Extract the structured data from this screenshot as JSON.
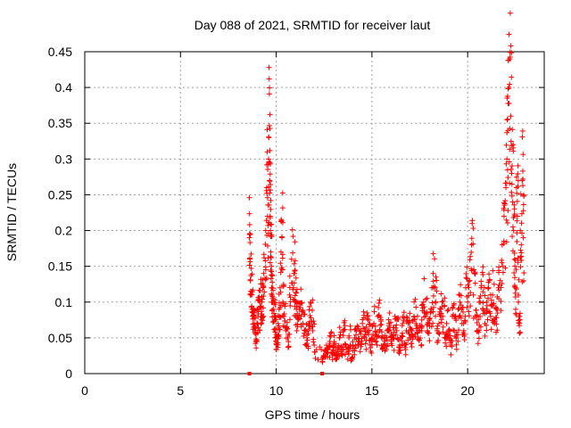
{
  "chart_data": {
    "type": "scatter",
    "title": "Day 088 of 2021, SRMTID for receiver laut",
    "xlabel": "GPS time / hours",
    "ylabel": "SRMTID / TECUs",
    "xlim": [
      0,
      24
    ],
    "ylim": [
      0,
      0.45
    ],
    "xticks": [
      0,
      5,
      10,
      15,
      20
    ],
    "xtick_labels": [
      "0",
      "5",
      "10",
      "15",
      "20"
    ],
    "yticks": [
      0,
      0.05,
      0.1,
      0.15,
      0.2,
      0.25,
      0.3,
      0.35,
      0.4,
      0.45
    ],
    "ytick_labels": [
      "0",
      "0.05",
      "0.1",
      "0.15",
      "0.2",
      "0.25",
      "0.3",
      "0.35",
      "0.4",
      "0.45"
    ],
    "grid": true,
    "marker": "+",
    "color": "#ff0000",
    "series": [
      {
        "name": "SRMTID",
        "x": [
          8.6,
          8.62,
          8.65,
          8.7,
          8.75,
          8.8,
          8.85,
          8.9,
          8.95,
          9.0,
          9.05,
          9.1,
          9.15,
          9.2,
          9.25,
          9.3,
          9.35,
          9.45,
          9.5,
          9.55,
          9.6,
          9.62,
          9.65,
          9.68,
          9.7,
          9.72,
          9.75,
          9.78,
          9.8,
          9.85,
          9.9,
          9.95,
          10.0,
          10.05,
          10.1,
          10.15,
          10.2,
          10.25,
          10.3,
          10.35,
          10.4,
          10.5,
          10.6,
          10.7,
          10.8,
          10.9,
          10.95,
          11.0,
          11.05,
          11.1,
          11.2,
          11.3,
          11.4,
          11.5,
          11.6,
          11.7,
          11.8,
          11.9,
          12.0,
          12.4,
          12.5,
          12.6,
          12.7,
          12.8,
          12.9,
          13.0,
          13.1,
          13.2,
          13.3,
          13.4,
          13.5,
          13.6,
          13.7,
          13.8,
          13.9,
          14.0,
          14.1,
          14.2,
          14.3,
          14.4,
          14.5,
          14.6,
          14.7,
          14.8,
          14.9,
          15.0,
          15.1,
          15.2,
          15.3,
          15.4,
          15.5,
          15.6,
          15.7,
          15.8,
          15.9,
          16.0,
          16.1,
          16.2,
          16.3,
          16.4,
          16.5,
          16.6,
          16.7,
          16.8,
          16.9,
          17.0,
          17.1,
          17.2,
          17.3,
          17.4,
          17.5,
          17.6,
          17.7,
          17.8,
          17.9,
          18.0,
          18.1,
          18.2,
          18.3,
          18.4,
          18.5,
          18.6,
          18.7,
          18.8,
          18.9,
          19.0,
          19.1,
          19.2,
          19.3,
          19.4,
          19.5,
          19.6,
          19.7,
          19.8,
          19.9,
          20.0,
          20.1,
          20.2,
          20.3,
          20.4,
          20.5,
          20.6,
          20.7,
          20.8,
          20.9,
          21.0,
          21.1,
          21.2,
          21.3,
          21.4,
          21.5,
          21.6,
          21.7,
          21.8,
          21.9,
          22.0,
          22.05,
          22.1,
          22.15,
          22.2,
          22.25,
          22.3,
          22.35,
          22.4,
          22.45,
          22.5,
          22.55,
          22.6,
          22.65,
          22.7,
          22.75,
          22.8,
          22.85,
          22.9
        ],
        "y": [
          0.19,
          0.16,
          0.13,
          0.11,
          0.09,
          0.08,
          0.07,
          0.06,
          0.055,
          0.07,
          0.08,
          0.09,
          0.1,
          0.08,
          0.1,
          0.12,
          0.14,
          0.2,
          0.26,
          0.22,
          0.3,
          0.33,
          0.27,
          0.22,
          0.2,
          0.17,
          0.15,
          0.12,
          0.1,
          0.09,
          0.08,
          0.06,
          0.05,
          0.04,
          0.07,
          0.09,
          0.12,
          0.17,
          0.19,
          0.1,
          0.08,
          0.06,
          0.05,
          0.11,
          0.16,
          0.12,
          0.14,
          0.1,
          0.09,
          0.08,
          0.09,
          0.08,
          0.07,
          0.06,
          0.05,
          0.07,
          0.1,
          0.06,
          0.03,
          0.02,
          0.025,
          0.03,
          0.035,
          0.045,
          0.03,
          0.04,
          0.025,
          0.035,
          0.05,
          0.03,
          0.06,
          0.04,
          0.03,
          0.05,
          0.02,
          0.04,
          0.05,
          0.06,
          0.045,
          0.055,
          0.07,
          0.05,
          0.065,
          0.06,
          0.04,
          0.05,
          0.07,
          0.045,
          0.08,
          0.06,
          0.05,
          0.04,
          0.05,
          0.06,
          0.07,
          0.045,
          0.05,
          0.08,
          0.06,
          0.03,
          0.05,
          0.07,
          0.04,
          0.06,
          0.07,
          0.05,
          0.06,
          0.08,
          0.07,
          0.05,
          0.06,
          0.075,
          0.1,
          0.08,
          0.06,
          0.07,
          0.09,
          0.14,
          0.12,
          0.06,
          0.07,
          0.09,
          0.08,
          0.05,
          0.07,
          0.06,
          0.04,
          0.08,
          0.06,
          0.05,
          0.09,
          0.1,
          0.07,
          0.06,
          0.12,
          0.1,
          0.13,
          0.18,
          0.11,
          0.08,
          0.06,
          0.1,
          0.12,
          0.09,
          0.07,
          0.1,
          0.12,
          0.08,
          0.11,
          0.07,
          0.09,
          0.12,
          0.13,
          0.18,
          0.22,
          0.26,
          0.3,
          0.34,
          0.4,
          0.44,
          0.36,
          0.28,
          0.24,
          0.2,
          0.16,
          0.12,
          0.26,
          0.22,
          0.1,
          0.08,
          0.2,
          0.18,
          0.27,
          0.19
        ],
        "outliers_at_zero": [
          8.6,
          12.4
        ]
      }
    ]
  }
}
